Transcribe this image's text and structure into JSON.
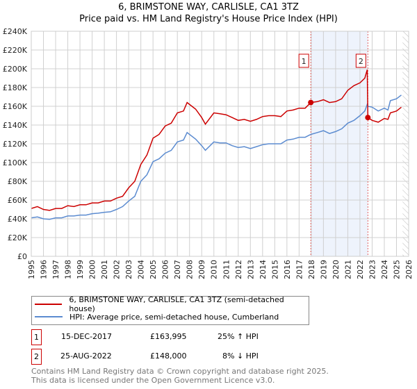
{
  "title": "6, BRIMSTONE WAY, CARLISLE, CA1 3TZ",
  "subtitle": "Price paid vs. HM Land Registry's House Price Index (HPI)",
  "chart_data": {
    "type": "line",
    "xlim": [
      1995,
      2026
    ],
    "ylim": [
      0,
      240000
    ],
    "x_ticks": [
      "1995",
      "1996",
      "1997",
      "1998",
      "1999",
      "2000",
      "2001",
      "2002",
      "2003",
      "2004",
      "2005",
      "2006",
      "2007",
      "2008",
      "2009",
      "2010",
      "2011",
      "2012",
      "2013",
      "2014",
      "2015",
      "2016",
      "2017",
      "2018",
      "2019",
      "2020",
      "2021",
      "2022",
      "2023",
      "2024",
      "2025",
      "2026"
    ],
    "y_ticks": [
      "£0",
      "£20K",
      "£40K",
      "£60K",
      "£80K",
      "£100K",
      "£120K",
      "£140K",
      "£160K",
      "£180K",
      "£200K",
      "£220K",
      "£240K"
    ],
    "shaded_region": [
      2017.96,
      2022.65
    ],
    "hatched_from": 2025.5,
    "series": [
      {
        "name": "6, BRIMSTONE WAY, CARLISLE, CA1 3TZ (semi-detached house)",
        "color": "#cc0000",
        "x": [
          1995,
          1995.5,
          1996,
          1996.5,
          1997,
          1997.5,
          1998,
          1998.5,
          1999,
          1999.5,
          2000,
          2000.5,
          2001,
          2001.5,
          2002,
          2002.5,
          2003,
          2003.5,
          2004,
          2004.5,
          2005,
          2005.5,
          2006,
          2006.5,
          2007,
          2007.5,
          2007.8,
          2008.5,
          2009,
          2009.3,
          2010,
          2010.5,
          2011,
          2011.5,
          2012,
          2012.5,
          2013,
          2013.5,
          2014,
          2014.5,
          2015,
          2015.5,
          2016,
          2016.5,
          2017,
          2017.5,
          2017.96,
          2018.5,
          2019,
          2019.5,
          2020,
          2020.5,
          2021,
          2021.5,
          2022,
          2022.4,
          2022.6,
          2022.65,
          2023,
          2023.5,
          2024,
          2024.3,
          2024.5,
          2025,
          2025.4
        ],
        "y": [
          51000,
          53000,
          50000,
          49000,
          51000,
          51000,
          54000,
          53000,
          55000,
          55000,
          57000,
          57000,
          59000,
          59000,
          62000,
          64000,
          73000,
          80000,
          98000,
          108000,
          126000,
          130000,
          139000,
          142000,
          153000,
          155000,
          164000,
          157000,
          148000,
          141000,
          153000,
          152000,
          151000,
          148000,
          145000,
          146000,
          144000,
          146000,
          149000,
          150000,
          150000,
          149000,
          155000,
          156000,
          158000,
          158000,
          164000,
          165000,
          167000,
          164000,
          165000,
          168000,
          177000,
          182000,
          185000,
          190000,
          199000,
          148000,
          145000,
          143000,
          147000,
          146000,
          153000,
          155000,
          159000
        ]
      },
      {
        "name": "HPI: Average price, semi-detached house, Cumberland",
        "color": "#5b8bd0",
        "x": [
          1995,
          1995.5,
          1996,
          1996.5,
          1997,
          1997.5,
          1998,
          1998.5,
          1999,
          1999.5,
          2000,
          2000.5,
          2001,
          2001.5,
          2002,
          2002.5,
          2003,
          2003.5,
          2004,
          2004.5,
          2005,
          2005.5,
          2006,
          2006.5,
          2007,
          2007.5,
          2007.8,
          2008.5,
          2009,
          2009.3,
          2010,
          2010.5,
          2011,
          2011.5,
          2012,
          2012.5,
          2013,
          2013.5,
          2014,
          2014.5,
          2015,
          2015.5,
          2016,
          2016.5,
          2017,
          2017.5,
          2017.96,
          2018.5,
          2019,
          2019.5,
          2020,
          2020.5,
          2021,
          2021.5,
          2022,
          2022.4,
          2022.6,
          2022.65,
          2023,
          2023.5,
          2024,
          2024.3,
          2024.5,
          2025,
          2025.4
        ],
        "y": [
          41000,
          42000,
          40000,
          39500,
          41000,
          41000,
          43000,
          43000,
          44000,
          44000,
          45500,
          46000,
          47000,
          47500,
          50000,
          53000,
          59000,
          64000,
          80000,
          87000,
          101000,
          104000,
          110000,
          113000,
          122000,
          124000,
          132000,
          125000,
          118000,
          113000,
          122000,
          121000,
          121000,
          118000,
          116000,
          117000,
          115000,
          117000,
          119000,
          120000,
          120000,
          120000,
          124000,
          125000,
          127000,
          127000,
          130000,
          132000,
          134000,
          131000,
          133000,
          136000,
          142000,
          145000,
          150000,
          155000,
          162000,
          160000,
          159000,
          155000,
          158000,
          156000,
          166000,
          168000,
          172000
        ]
      }
    ],
    "annotations": [
      {
        "label": "1",
        "x": 2017.96,
        "y": 163995
      },
      {
        "label": "2",
        "x": 2022.65,
        "y": 148000
      }
    ]
  },
  "legend": [
    "6, BRIMSTONE WAY, CARLISLE, CA1 3TZ (semi-detached house)",
    "HPI: Average price, semi-detached house, Cumberland"
  ],
  "transactions": [
    {
      "num": "1",
      "date": "15-DEC-2017",
      "price": "£163,995",
      "hpi": "25% ↑ HPI"
    },
    {
      "num": "2",
      "date": "25-AUG-2022",
      "price": "£148,000",
      "hpi": "8% ↓ HPI"
    }
  ],
  "footer": [
    "Contains HM Land Registry data © Crown copyright and database right 2025.",
    "This data is licensed under the Open Government Licence v3.0."
  ]
}
